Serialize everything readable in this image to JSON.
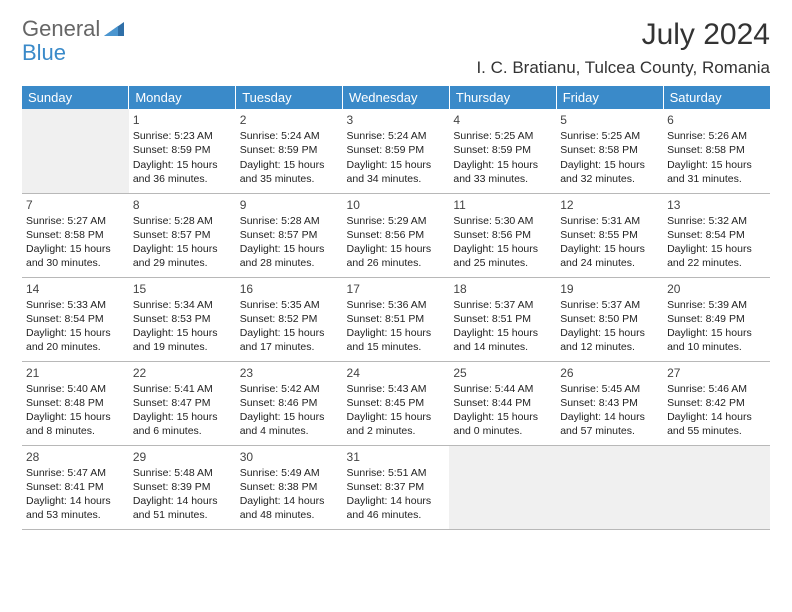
{
  "logo": {
    "part1": "General",
    "part2": "Blue"
  },
  "title": "July 2024",
  "location": "I. C. Bratianu, Tulcea County, Romania",
  "colors": {
    "header_bg": "#3a8ac9",
    "header_text": "#ffffff",
    "border": "#b8b8b8",
    "empty_bg": "#f0f0f0",
    "text": "#222222"
  },
  "weekdays": [
    "Sunday",
    "Monday",
    "Tuesday",
    "Wednesday",
    "Thursday",
    "Friday",
    "Saturday"
  ],
  "weeks": [
    [
      null,
      {
        "d": "1",
        "sr": "Sunrise: 5:23 AM",
        "ss": "Sunset: 8:59 PM",
        "dl1": "Daylight: 15 hours",
        "dl2": "and 36 minutes."
      },
      {
        "d": "2",
        "sr": "Sunrise: 5:24 AM",
        "ss": "Sunset: 8:59 PM",
        "dl1": "Daylight: 15 hours",
        "dl2": "and 35 minutes."
      },
      {
        "d": "3",
        "sr": "Sunrise: 5:24 AM",
        "ss": "Sunset: 8:59 PM",
        "dl1": "Daylight: 15 hours",
        "dl2": "and 34 minutes."
      },
      {
        "d": "4",
        "sr": "Sunrise: 5:25 AM",
        "ss": "Sunset: 8:59 PM",
        "dl1": "Daylight: 15 hours",
        "dl2": "and 33 minutes."
      },
      {
        "d": "5",
        "sr": "Sunrise: 5:25 AM",
        "ss": "Sunset: 8:58 PM",
        "dl1": "Daylight: 15 hours",
        "dl2": "and 32 minutes."
      },
      {
        "d": "6",
        "sr": "Sunrise: 5:26 AM",
        "ss": "Sunset: 8:58 PM",
        "dl1": "Daylight: 15 hours",
        "dl2": "and 31 minutes."
      }
    ],
    [
      {
        "d": "7",
        "sr": "Sunrise: 5:27 AM",
        "ss": "Sunset: 8:58 PM",
        "dl1": "Daylight: 15 hours",
        "dl2": "and 30 minutes."
      },
      {
        "d": "8",
        "sr": "Sunrise: 5:28 AM",
        "ss": "Sunset: 8:57 PM",
        "dl1": "Daylight: 15 hours",
        "dl2": "and 29 minutes."
      },
      {
        "d": "9",
        "sr": "Sunrise: 5:28 AM",
        "ss": "Sunset: 8:57 PM",
        "dl1": "Daylight: 15 hours",
        "dl2": "and 28 minutes."
      },
      {
        "d": "10",
        "sr": "Sunrise: 5:29 AM",
        "ss": "Sunset: 8:56 PM",
        "dl1": "Daylight: 15 hours",
        "dl2": "and 26 minutes."
      },
      {
        "d": "11",
        "sr": "Sunrise: 5:30 AM",
        "ss": "Sunset: 8:56 PM",
        "dl1": "Daylight: 15 hours",
        "dl2": "and 25 minutes."
      },
      {
        "d": "12",
        "sr": "Sunrise: 5:31 AM",
        "ss": "Sunset: 8:55 PM",
        "dl1": "Daylight: 15 hours",
        "dl2": "and 24 minutes."
      },
      {
        "d": "13",
        "sr": "Sunrise: 5:32 AM",
        "ss": "Sunset: 8:54 PM",
        "dl1": "Daylight: 15 hours",
        "dl2": "and 22 minutes."
      }
    ],
    [
      {
        "d": "14",
        "sr": "Sunrise: 5:33 AM",
        "ss": "Sunset: 8:54 PM",
        "dl1": "Daylight: 15 hours",
        "dl2": "and 20 minutes."
      },
      {
        "d": "15",
        "sr": "Sunrise: 5:34 AM",
        "ss": "Sunset: 8:53 PM",
        "dl1": "Daylight: 15 hours",
        "dl2": "and 19 minutes."
      },
      {
        "d": "16",
        "sr": "Sunrise: 5:35 AM",
        "ss": "Sunset: 8:52 PM",
        "dl1": "Daylight: 15 hours",
        "dl2": "and 17 minutes."
      },
      {
        "d": "17",
        "sr": "Sunrise: 5:36 AM",
        "ss": "Sunset: 8:51 PM",
        "dl1": "Daylight: 15 hours",
        "dl2": "and 15 minutes."
      },
      {
        "d": "18",
        "sr": "Sunrise: 5:37 AM",
        "ss": "Sunset: 8:51 PM",
        "dl1": "Daylight: 15 hours",
        "dl2": "and 14 minutes."
      },
      {
        "d": "19",
        "sr": "Sunrise: 5:37 AM",
        "ss": "Sunset: 8:50 PM",
        "dl1": "Daylight: 15 hours",
        "dl2": "and 12 minutes."
      },
      {
        "d": "20",
        "sr": "Sunrise: 5:39 AM",
        "ss": "Sunset: 8:49 PM",
        "dl1": "Daylight: 15 hours",
        "dl2": "and 10 minutes."
      }
    ],
    [
      {
        "d": "21",
        "sr": "Sunrise: 5:40 AM",
        "ss": "Sunset: 8:48 PM",
        "dl1": "Daylight: 15 hours",
        "dl2": "and 8 minutes."
      },
      {
        "d": "22",
        "sr": "Sunrise: 5:41 AM",
        "ss": "Sunset: 8:47 PM",
        "dl1": "Daylight: 15 hours",
        "dl2": "and 6 minutes."
      },
      {
        "d": "23",
        "sr": "Sunrise: 5:42 AM",
        "ss": "Sunset: 8:46 PM",
        "dl1": "Daylight: 15 hours",
        "dl2": "and 4 minutes."
      },
      {
        "d": "24",
        "sr": "Sunrise: 5:43 AM",
        "ss": "Sunset: 8:45 PM",
        "dl1": "Daylight: 15 hours",
        "dl2": "and 2 minutes."
      },
      {
        "d": "25",
        "sr": "Sunrise: 5:44 AM",
        "ss": "Sunset: 8:44 PM",
        "dl1": "Daylight: 15 hours",
        "dl2": "and 0 minutes."
      },
      {
        "d": "26",
        "sr": "Sunrise: 5:45 AM",
        "ss": "Sunset: 8:43 PM",
        "dl1": "Daylight: 14 hours",
        "dl2": "and 57 minutes."
      },
      {
        "d": "27",
        "sr": "Sunrise: 5:46 AM",
        "ss": "Sunset: 8:42 PM",
        "dl1": "Daylight: 14 hours",
        "dl2": "and 55 minutes."
      }
    ],
    [
      {
        "d": "28",
        "sr": "Sunrise: 5:47 AM",
        "ss": "Sunset: 8:41 PM",
        "dl1": "Daylight: 14 hours",
        "dl2": "and 53 minutes."
      },
      {
        "d": "29",
        "sr": "Sunrise: 5:48 AM",
        "ss": "Sunset: 8:39 PM",
        "dl1": "Daylight: 14 hours",
        "dl2": "and 51 minutes."
      },
      {
        "d": "30",
        "sr": "Sunrise: 5:49 AM",
        "ss": "Sunset: 8:38 PM",
        "dl1": "Daylight: 14 hours",
        "dl2": "and 48 minutes."
      },
      {
        "d": "31",
        "sr": "Sunrise: 5:51 AM",
        "ss": "Sunset: 8:37 PM",
        "dl1": "Daylight: 14 hours",
        "dl2": "and 46 minutes."
      },
      null,
      null,
      null
    ]
  ]
}
